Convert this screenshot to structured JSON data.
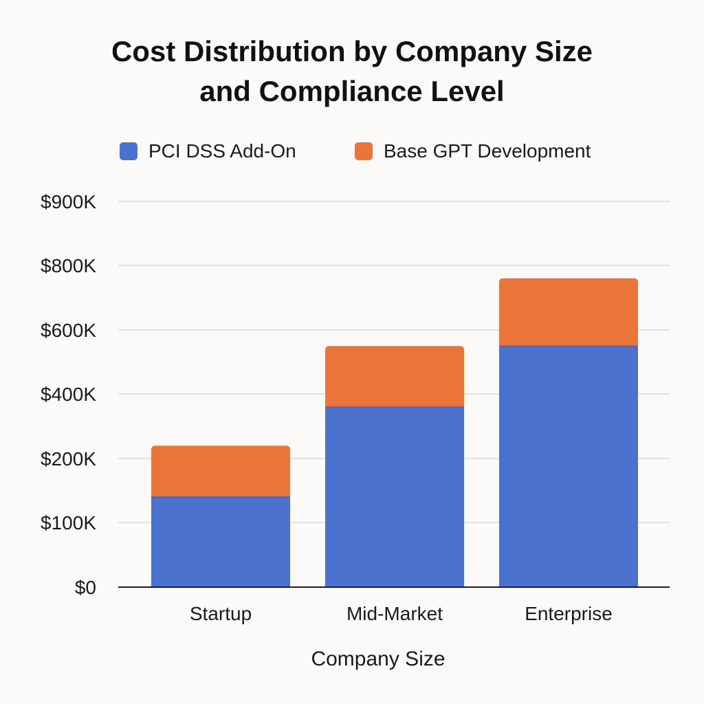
{
  "chart_data": {
    "type": "bar",
    "stacked": true,
    "title": [
      "Cost Distribution by Company Size",
      "and Compliance Level"
    ],
    "xlabel": "Company Size",
    "ylabel": "",
    "categories": [
      "Startup",
      "Mid-Market",
      "Enterprise"
    ],
    "series": [
      {
        "name": "PCI DSS Add-On",
        "color": "#4c72cf",
        "values": [
          140000,
          360000,
          550000
        ]
      },
      {
        "name": "Base GPT Development",
        "color": "#eb743b",
        "values": [
          100000,
          190000,
          210000
        ]
      }
    ],
    "y_ticks": [
      {
        "value": 0,
        "label": "$0"
      },
      {
        "value": 100000,
        "label": "$100K"
      },
      {
        "value": 200000,
        "label": "$200K"
      },
      {
        "value": 400000,
        "label": "$400K"
      },
      {
        "value": 600000,
        "label": "$600K"
      },
      {
        "value": 800000,
        "label": "$800K"
      },
      {
        "value": 900000,
        "label": "$900K"
      }
    ],
    "grid": true,
    "legend_position": "top"
  }
}
